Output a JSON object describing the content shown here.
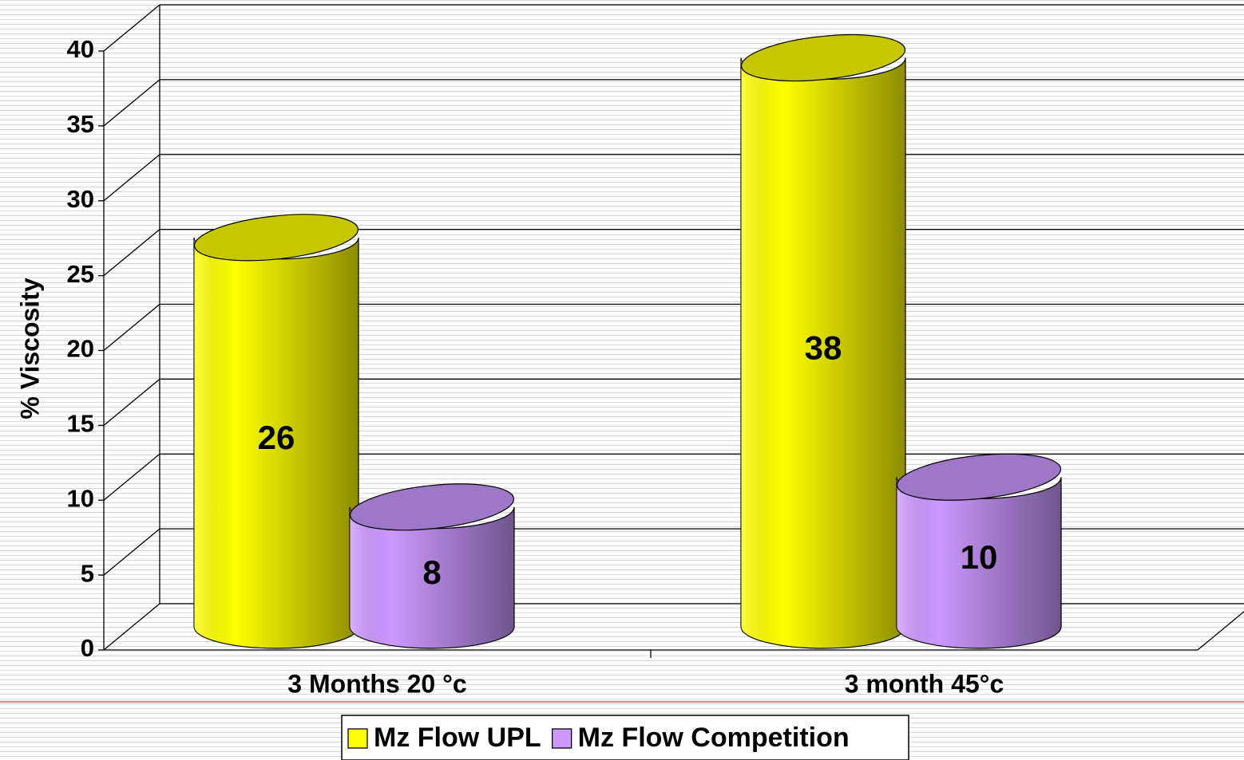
{
  "chart_data": {
    "type": "bar3d",
    "y_label": "% Viscosity",
    "categories": [
      "3 Months 20 °c",
      "3 month 45°c"
    ],
    "series": [
      {
        "name": "Mz Flow UPL",
        "color": "#ffff00",
        "values": [
          26,
          38
        ]
      },
      {
        "name": "Mz Flow Competition",
        "color": "#cc99ff",
        "values": [
          8,
          10
        ]
      }
    ],
    "ylim": [
      0,
      40
    ],
    "yticks": [
      0,
      5,
      10,
      15,
      20,
      25,
      30,
      35,
      40
    ],
    "grid": true
  }
}
